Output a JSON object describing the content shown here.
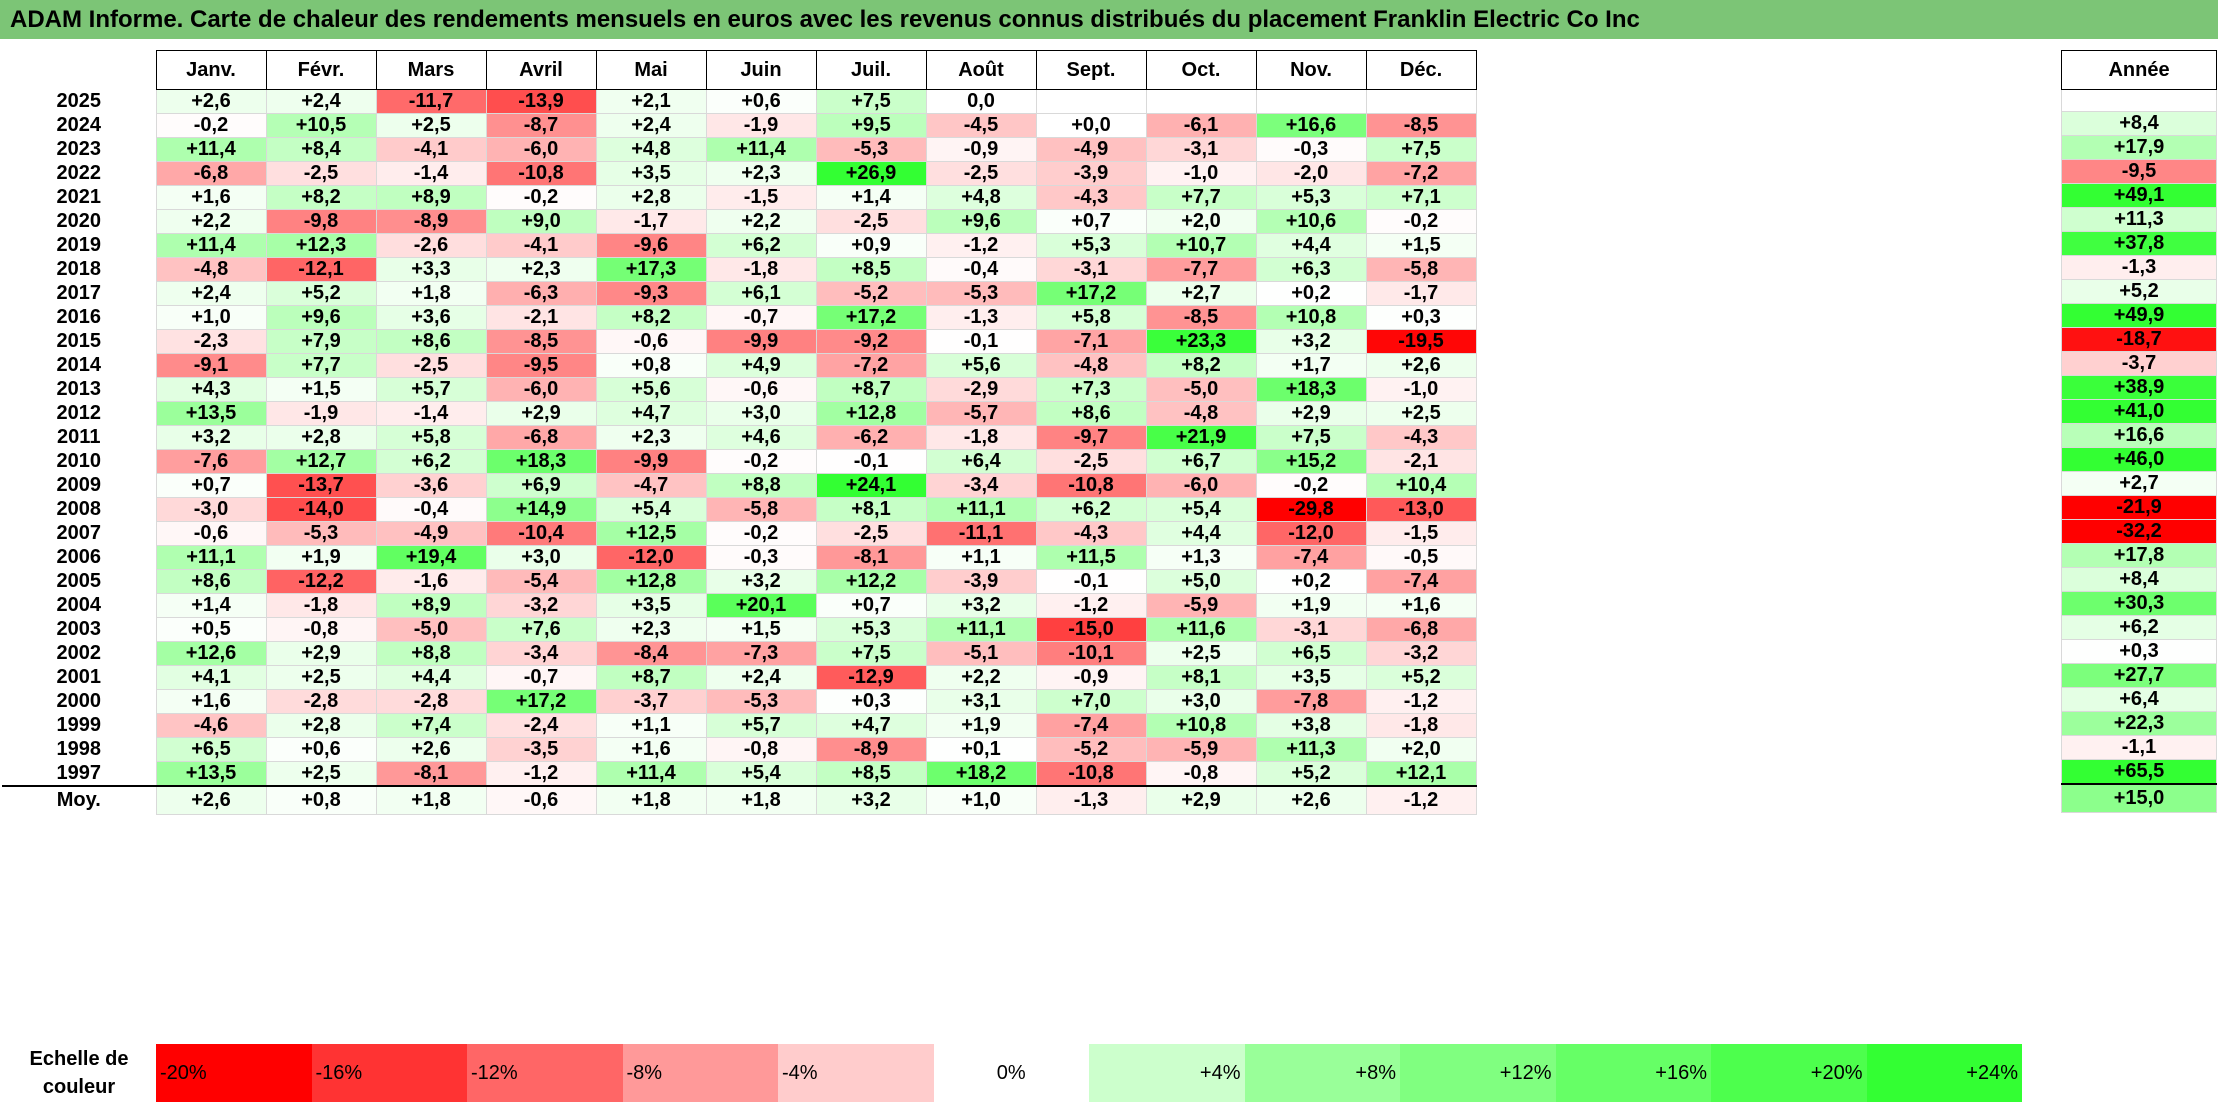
{
  "title": "ADAM Informe. Carte de chaleur des rendements mensuels en euros avec les revenus connus distribués du placement Franklin Electric Co Inc",
  "chart_data": {
    "type": "heatmap",
    "months": [
      "Janv.",
      "Févr.",
      "Mars",
      "Avril",
      "Mai",
      "Juin",
      "Juil.",
      "Août",
      "Sept.",
      "Oct.",
      "Nov.",
      "Déc."
    ],
    "annual_header": "Année",
    "rows": [
      {
        "year": "2025",
        "values": [
          "+2,6",
          "+2,4",
          "-11,7",
          "-13,9",
          "+2,1",
          "+0,6",
          "+7,5",
          "0,0",
          "",
          "",
          "",
          ""
        ],
        "annual": ""
      },
      {
        "year": "2024",
        "values": [
          "-0,2",
          "+10,5",
          "+2,5",
          "-8,7",
          "+2,4",
          "-1,9",
          "+9,5",
          "-4,5",
          "+0,0",
          "-6,1",
          "+16,6",
          "-8,5"
        ],
        "annual": "+8,4"
      },
      {
        "year": "2023",
        "values": [
          "+11,4",
          "+8,4",
          "-4,1",
          "-6,0",
          "+4,8",
          "+11,4",
          "-5,3",
          "-0,9",
          "-4,9",
          "-3,1",
          "-0,3",
          "+7,5"
        ],
        "annual": "+17,9"
      },
      {
        "year": "2022",
        "values": [
          "-6,8",
          "-2,5",
          "-1,4",
          "-10,8",
          "+3,5",
          "+2,3",
          "+26,9",
          "-2,5",
          "-3,9",
          "-1,0",
          "-2,0",
          "-7,2"
        ],
        "annual": "-9,5"
      },
      {
        "year": "2021",
        "values": [
          "+1,6",
          "+8,2",
          "+8,9",
          "-0,2",
          "+2,8",
          "-1,5",
          "+1,4",
          "+4,8",
          "-4,3",
          "+7,7",
          "+5,3",
          "+7,1"
        ],
        "annual": "+49,1"
      },
      {
        "year": "2020",
        "values": [
          "+2,2",
          "-9,8",
          "-8,9",
          "+9,0",
          "-1,7",
          "+2,2",
          "-2,5",
          "+9,6",
          "+0,7",
          "+2,0",
          "+10,6",
          "-0,2"
        ],
        "annual": "+11,3"
      },
      {
        "year": "2019",
        "values": [
          "+11,4",
          "+12,3",
          "-2,6",
          "-4,1",
          "-9,6",
          "+6,2",
          "+0,9",
          "-1,2",
          "+5,3",
          "+10,7",
          "+4,4",
          "+1,5"
        ],
        "annual": "+37,8"
      },
      {
        "year": "2018",
        "values": [
          "-4,8",
          "-12,1",
          "+3,3",
          "+2,3",
          "+17,3",
          "-1,8",
          "+8,5",
          "-0,4",
          "-3,1",
          "-7,7",
          "+6,3",
          "-5,8"
        ],
        "annual": "-1,3"
      },
      {
        "year": "2017",
        "values": [
          "+2,4",
          "+5,2",
          "+1,8",
          "-6,3",
          "-9,3",
          "+6,1",
          "-5,2",
          "-5,3",
          "+17,2",
          "+2,7",
          "+0,2",
          "-1,7"
        ],
        "annual": "+5,2"
      },
      {
        "year": "2016",
        "values": [
          "+1,0",
          "+9,6",
          "+3,6",
          "-2,1",
          "+8,2",
          "-0,7",
          "+17,2",
          "-1,3",
          "+5,8",
          "-8,5",
          "+10,8",
          "+0,3"
        ],
        "annual": "+49,9"
      },
      {
        "year": "2015",
        "values": [
          "-2,3",
          "+7,9",
          "+8,6",
          "-8,5",
          "-0,6",
          "-9,9",
          "-9,2",
          "-0,1",
          "-7,1",
          "+23,3",
          "+3,2",
          "-19,5"
        ],
        "annual": "-18,7"
      },
      {
        "year": "2014",
        "values": [
          "-9,1",
          "+7,7",
          "-2,5",
          "-9,5",
          "+0,8",
          "+4,9",
          "-7,2",
          "+5,6",
          "-4,8",
          "+8,2",
          "+1,7",
          "+2,6"
        ],
        "annual": "-3,7"
      },
      {
        "year": "2013",
        "values": [
          "+4,3",
          "+1,5",
          "+5,7",
          "-6,0",
          "+5,6",
          "-0,6",
          "+8,7",
          "-2,9",
          "+7,3",
          "-5,0",
          "+18,3",
          "-1,0"
        ],
        "annual": "+38,9"
      },
      {
        "year": "2012",
        "values": [
          "+13,5",
          "-1,9",
          "-1,4",
          "+2,9",
          "+4,7",
          "+3,0",
          "+12,8",
          "-5,7",
          "+8,6",
          "-4,8",
          "+2,9",
          "+2,5"
        ],
        "annual": "+41,0"
      },
      {
        "year": "2011",
        "values": [
          "+3,2",
          "+2,8",
          "+5,8",
          "-6,8",
          "+2,3",
          "+4,6",
          "-6,2",
          "-1,8",
          "-9,7",
          "+21,9",
          "+7,5",
          "-4,3"
        ],
        "annual": "+16,6"
      },
      {
        "year": "2010",
        "values": [
          "-7,6",
          "+12,7",
          "+6,2",
          "+18,3",
          "-9,9",
          "-0,2",
          "-0,1",
          "+6,4",
          "-2,5",
          "+6,7",
          "+15,2",
          "-2,1"
        ],
        "annual": "+46,0"
      },
      {
        "year": "2009",
        "values": [
          "+0,7",
          "-13,7",
          "-3,6",
          "+6,9",
          "-4,7",
          "+8,8",
          "+24,1",
          "-3,4",
          "-10,8",
          "-6,0",
          "-0,2",
          "+10,4"
        ],
        "annual": "+2,7"
      },
      {
        "year": "2008",
        "values": [
          "-3,0",
          "-14,0",
          "-0,4",
          "+14,9",
          "+5,4",
          "-5,8",
          "+8,1",
          "+11,1",
          "+6,2",
          "+5,4",
          "-29,8",
          "-13,0"
        ],
        "annual": "-21,9"
      },
      {
        "year": "2007",
        "values": [
          "-0,6",
          "-5,3",
          "-4,9",
          "-10,4",
          "+12,5",
          "-0,2",
          "-2,5",
          "-11,1",
          "-4,3",
          "+4,4",
          "-12,0",
          "-1,5"
        ],
        "annual": "-32,2"
      },
      {
        "year": "2006",
        "values": [
          "+11,1",
          "+1,9",
          "+19,4",
          "+3,0",
          "-12,0",
          "-0,3",
          "-8,1",
          "+1,1",
          "+11,5",
          "+1,3",
          "-7,4",
          "-0,5"
        ],
        "annual": "+17,8"
      },
      {
        "year": "2005",
        "values": [
          "+8,6",
          "-12,2",
          "-1,6",
          "-5,4",
          "+12,8",
          "+3,2",
          "+12,2",
          "-3,9",
          "-0,1",
          "+5,0",
          "+0,2",
          "-7,4"
        ],
        "annual": "+8,4"
      },
      {
        "year": "2004",
        "values": [
          "+1,4",
          "-1,8",
          "+8,9",
          "-3,2",
          "+3,5",
          "+20,1",
          "+0,7",
          "+3,2",
          "-1,2",
          "-5,9",
          "+1,9",
          "+1,6"
        ],
        "annual": "+30,3"
      },
      {
        "year": "2003",
        "values": [
          "+0,5",
          "-0,8",
          "-5,0",
          "+7,6",
          "+2,3",
          "+1,5",
          "+5,3",
          "+11,1",
          "-15,0",
          "+11,6",
          "-3,1",
          "-6,8"
        ],
        "annual": "+6,2"
      },
      {
        "year": "2002",
        "values": [
          "+12,6",
          "+2,9",
          "+8,8",
          "-3,4",
          "-8,4",
          "-7,3",
          "+7,5",
          "-5,1",
          "-10,1",
          "+2,5",
          "+6,5",
          "-3,2"
        ],
        "annual": "+0,3"
      },
      {
        "year": "2001",
        "values": [
          "+4,1",
          "+2,5",
          "+4,4",
          "-0,7",
          "+8,7",
          "+2,4",
          "-12,9",
          "+2,2",
          "-0,9",
          "+8,1",
          "+3,5",
          "+5,2"
        ],
        "annual": "+27,7"
      },
      {
        "year": "2000",
        "values": [
          "+1,6",
          "-2,8",
          "-2,8",
          "+17,2",
          "-3,7",
          "-5,3",
          "+0,3",
          "+3,1",
          "+7,0",
          "+3,0",
          "-7,8",
          "-1,2"
        ],
        "annual": "+6,4"
      },
      {
        "year": "1999",
        "values": [
          "-4,6",
          "+2,8",
          "+7,4",
          "-2,4",
          "+1,1",
          "+5,7",
          "+4,7",
          "+1,9",
          "-7,4",
          "+10,8",
          "+3,8",
          "-1,8"
        ],
        "annual": "+22,3"
      },
      {
        "year": "1998",
        "values": [
          "+6,5",
          "+0,6",
          "+2,6",
          "-3,5",
          "+1,6",
          "-0,8",
          "-8,9",
          "+0,1",
          "-5,2",
          "-5,9",
          "+11,3",
          "+2,0"
        ],
        "annual": "-1,1"
      },
      {
        "year": "1997",
        "values": [
          "+13,5",
          "+2,5",
          "-8,1",
          "-1,2",
          "+11,4",
          "+5,4",
          "+8,5",
          "+18,2",
          "-10,8",
          "-0,8",
          "+5,2",
          "+12,1"
        ],
        "annual": "+65,5"
      }
    ],
    "average": {
      "label": "Moy.",
      "values": [
        "+2,6",
        "+0,8",
        "+1,8",
        "-0,6",
        "+1,8",
        "+1,8",
        "+3,2",
        "+1,0",
        "-1,3",
        "+2,9",
        "+2,6",
        "-1,2"
      ],
      "annual": "+15,0"
    },
    "legend": {
      "label_line1": "Echelle de",
      "label_line2": "couleur",
      "stops": [
        {
          "label": "-20%",
          "value": -20,
          "color": "#ff0000"
        },
        {
          "label": "-16%",
          "value": -16,
          "color": "#ff3333"
        },
        {
          "label": "-12%",
          "value": -12,
          "color": "#ff6666"
        },
        {
          "label": "-8%",
          "value": -8,
          "color": "#ff9999"
        },
        {
          "label": "-4%",
          "value": -4,
          "color": "#ffcccc"
        },
        {
          "label": "0%",
          "value": 0,
          "color": "#ffffff"
        },
        {
          "label": "+4%",
          "value": 4,
          "color": "#ccffcc"
        },
        {
          "label": "+8%",
          "value": 8,
          "color": "#99ff99"
        },
        {
          "label": "+12%",
          "value": 12,
          "color": "#80ff80"
        },
        {
          "label": "+16%",
          "value": 16,
          "color": "#66ff66"
        },
        {
          "label": "+20%",
          "value": 20,
          "color": "#4dff4d"
        },
        {
          "label": "+24%",
          "value": 24,
          "color": "#33ff33"
        }
      ]
    },
    "annual_scale_max": 40
  }
}
